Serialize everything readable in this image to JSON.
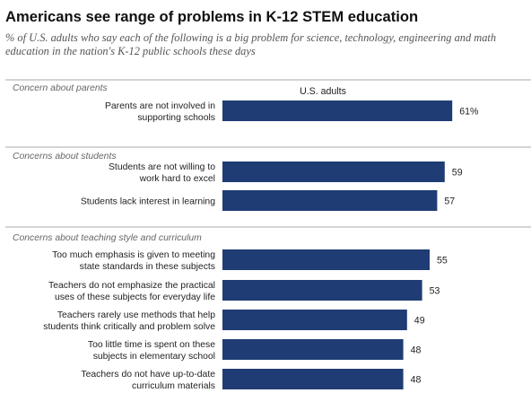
{
  "title": "Americans see range of problems in K-12 STEM education",
  "subtitle": [
    "% of U.S. adults who say each of the following is a big problem for science, technology, engineering and math",
    "education in the nation's K-12 public schools  these days"
  ],
  "colors": {
    "bar": "#1f3c74",
    "divider": "#aaaaaa"
  },
  "chart_data": {
    "type": "bar",
    "orientation": "horizontal",
    "column_header": "U.S. adults",
    "xlim": [
      0,
      100
    ],
    "grid": false,
    "groups": [
      {
        "label": "Concern about parents",
        "items": [
          {
            "label": [
              "Parents are not involved in",
              "supporting schools"
            ],
            "value": 61,
            "value_label": "61%"
          }
        ]
      },
      {
        "label": "Concerns about students",
        "items": [
          {
            "label": [
              "Students are not willing to",
              "work hard to excel"
            ],
            "value": 59,
            "value_label": "59"
          },
          {
            "label": [
              "Students lack interest in learning"
            ],
            "value": 57,
            "value_label": "57"
          }
        ]
      },
      {
        "label": "Concerns about teaching style and curriculum",
        "items": [
          {
            "label": [
              "Too much emphasis is given to meeting",
              "state standards in these subjects"
            ],
            "value": 55,
            "value_label": "55"
          },
          {
            "label": [
              "Teachers do not emphasize the practical",
              "uses of these subjects for everyday life"
            ],
            "value": 53,
            "value_label": "53"
          },
          {
            "label": [
              "Teachers rarely use methods that help",
              "students think critically and problem solve"
            ],
            "value": 49,
            "value_label": "49"
          },
          {
            "label": [
              "Too little time is spent on these",
              "subjects in elementary school"
            ],
            "value": 48,
            "value_label": "48"
          },
          {
            "label": [
              "Teachers do not have  up-to-date",
              "curriculum materials"
            ],
            "value": 48,
            "value_label": "48"
          }
        ]
      }
    ]
  }
}
